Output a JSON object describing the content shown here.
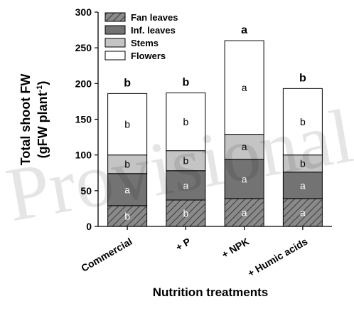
{
  "chart_data": {
    "type": "bar",
    "stacked": true,
    "categories": [
      "Commercial",
      "+ P",
      "+ NPK",
      "+ Humic acids"
    ],
    "ylabel_line1": "Total shoot FW",
    "ylabel_line2_prefix": "(gFW plant",
    "ylabel_line2_sup": "-1",
    "ylabel_line2_suffix": ")",
    "xlabel": "Nutrition treatments",
    "ylim": [
      0,
      300
    ],
    "yticks": [
      0,
      50,
      100,
      150,
      200,
      250,
      300
    ],
    "legend_position": "top-left",
    "series": [
      {
        "name": "Fan leaves",
        "values": [
          29,
          37,
          39,
          39
        ],
        "letters": [
          "b",
          "b",
          "a",
          "a"
        ],
        "color": "#777777",
        "hatched": true
      },
      {
        "name": "Inf. leaves",
        "values": [
          45,
          41,
          55,
          37
        ],
        "letters": [
          "a",
          "a",
          "a",
          "a"
        ],
        "color": "#737373",
        "hatched": false
      },
      {
        "name": "Stems",
        "values": [
          26,
          28,
          35,
          24
        ],
        "letters": [
          "b",
          "b",
          "a",
          "b"
        ],
        "color": "#c4c4c4",
        "hatched": false
      },
      {
        "name": "Flowers",
        "values": [
          86,
          81,
          131,
          93
        ],
        "letters": [
          "b",
          "b",
          "a",
          "b"
        ],
        "color": "#ffffff",
        "hatched": false
      }
    ],
    "total_letters": [
      "b",
      "b",
      "a",
      "b"
    ]
  },
  "watermark": "Provisional"
}
